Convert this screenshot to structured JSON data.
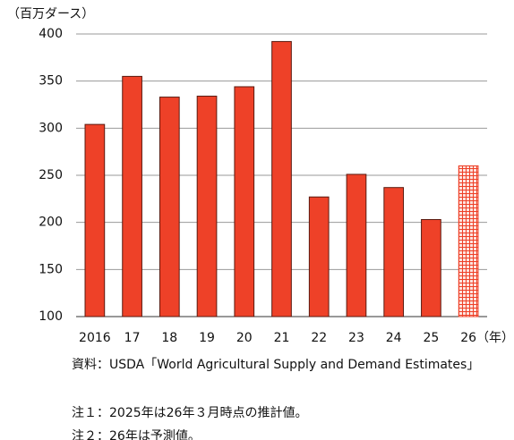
{
  "chart_data": {
    "type": "bar",
    "y_unit": "（百万ダース）",
    "x_unit": "（年）",
    "categories": [
      "2016",
      "17",
      "18",
      "19",
      "20",
      "21",
      "22",
      "23",
      "24",
      "25",
      "26"
    ],
    "values": [
      304,
      355,
      333,
      334,
      344,
      392,
      227,
      251,
      237,
      203,
      260
    ],
    "bar_styles": [
      "solid",
      "solid",
      "solid",
      "solid",
      "solid",
      "solid",
      "solid",
      "solid",
      "solid",
      "solid",
      "hatched"
    ],
    "color": "#ee4128",
    "ylim": [
      100,
      400
    ],
    "yticks": [
      100,
      150,
      200,
      250,
      300,
      350,
      400
    ],
    "grid": true,
    "notes": [
      "資料：USDA「World Agricultural Supply and Demand Estimates」",
      "注１：2025年は26年３月時点の推計値。",
      "注２：26年は予測値。"
    ]
  }
}
